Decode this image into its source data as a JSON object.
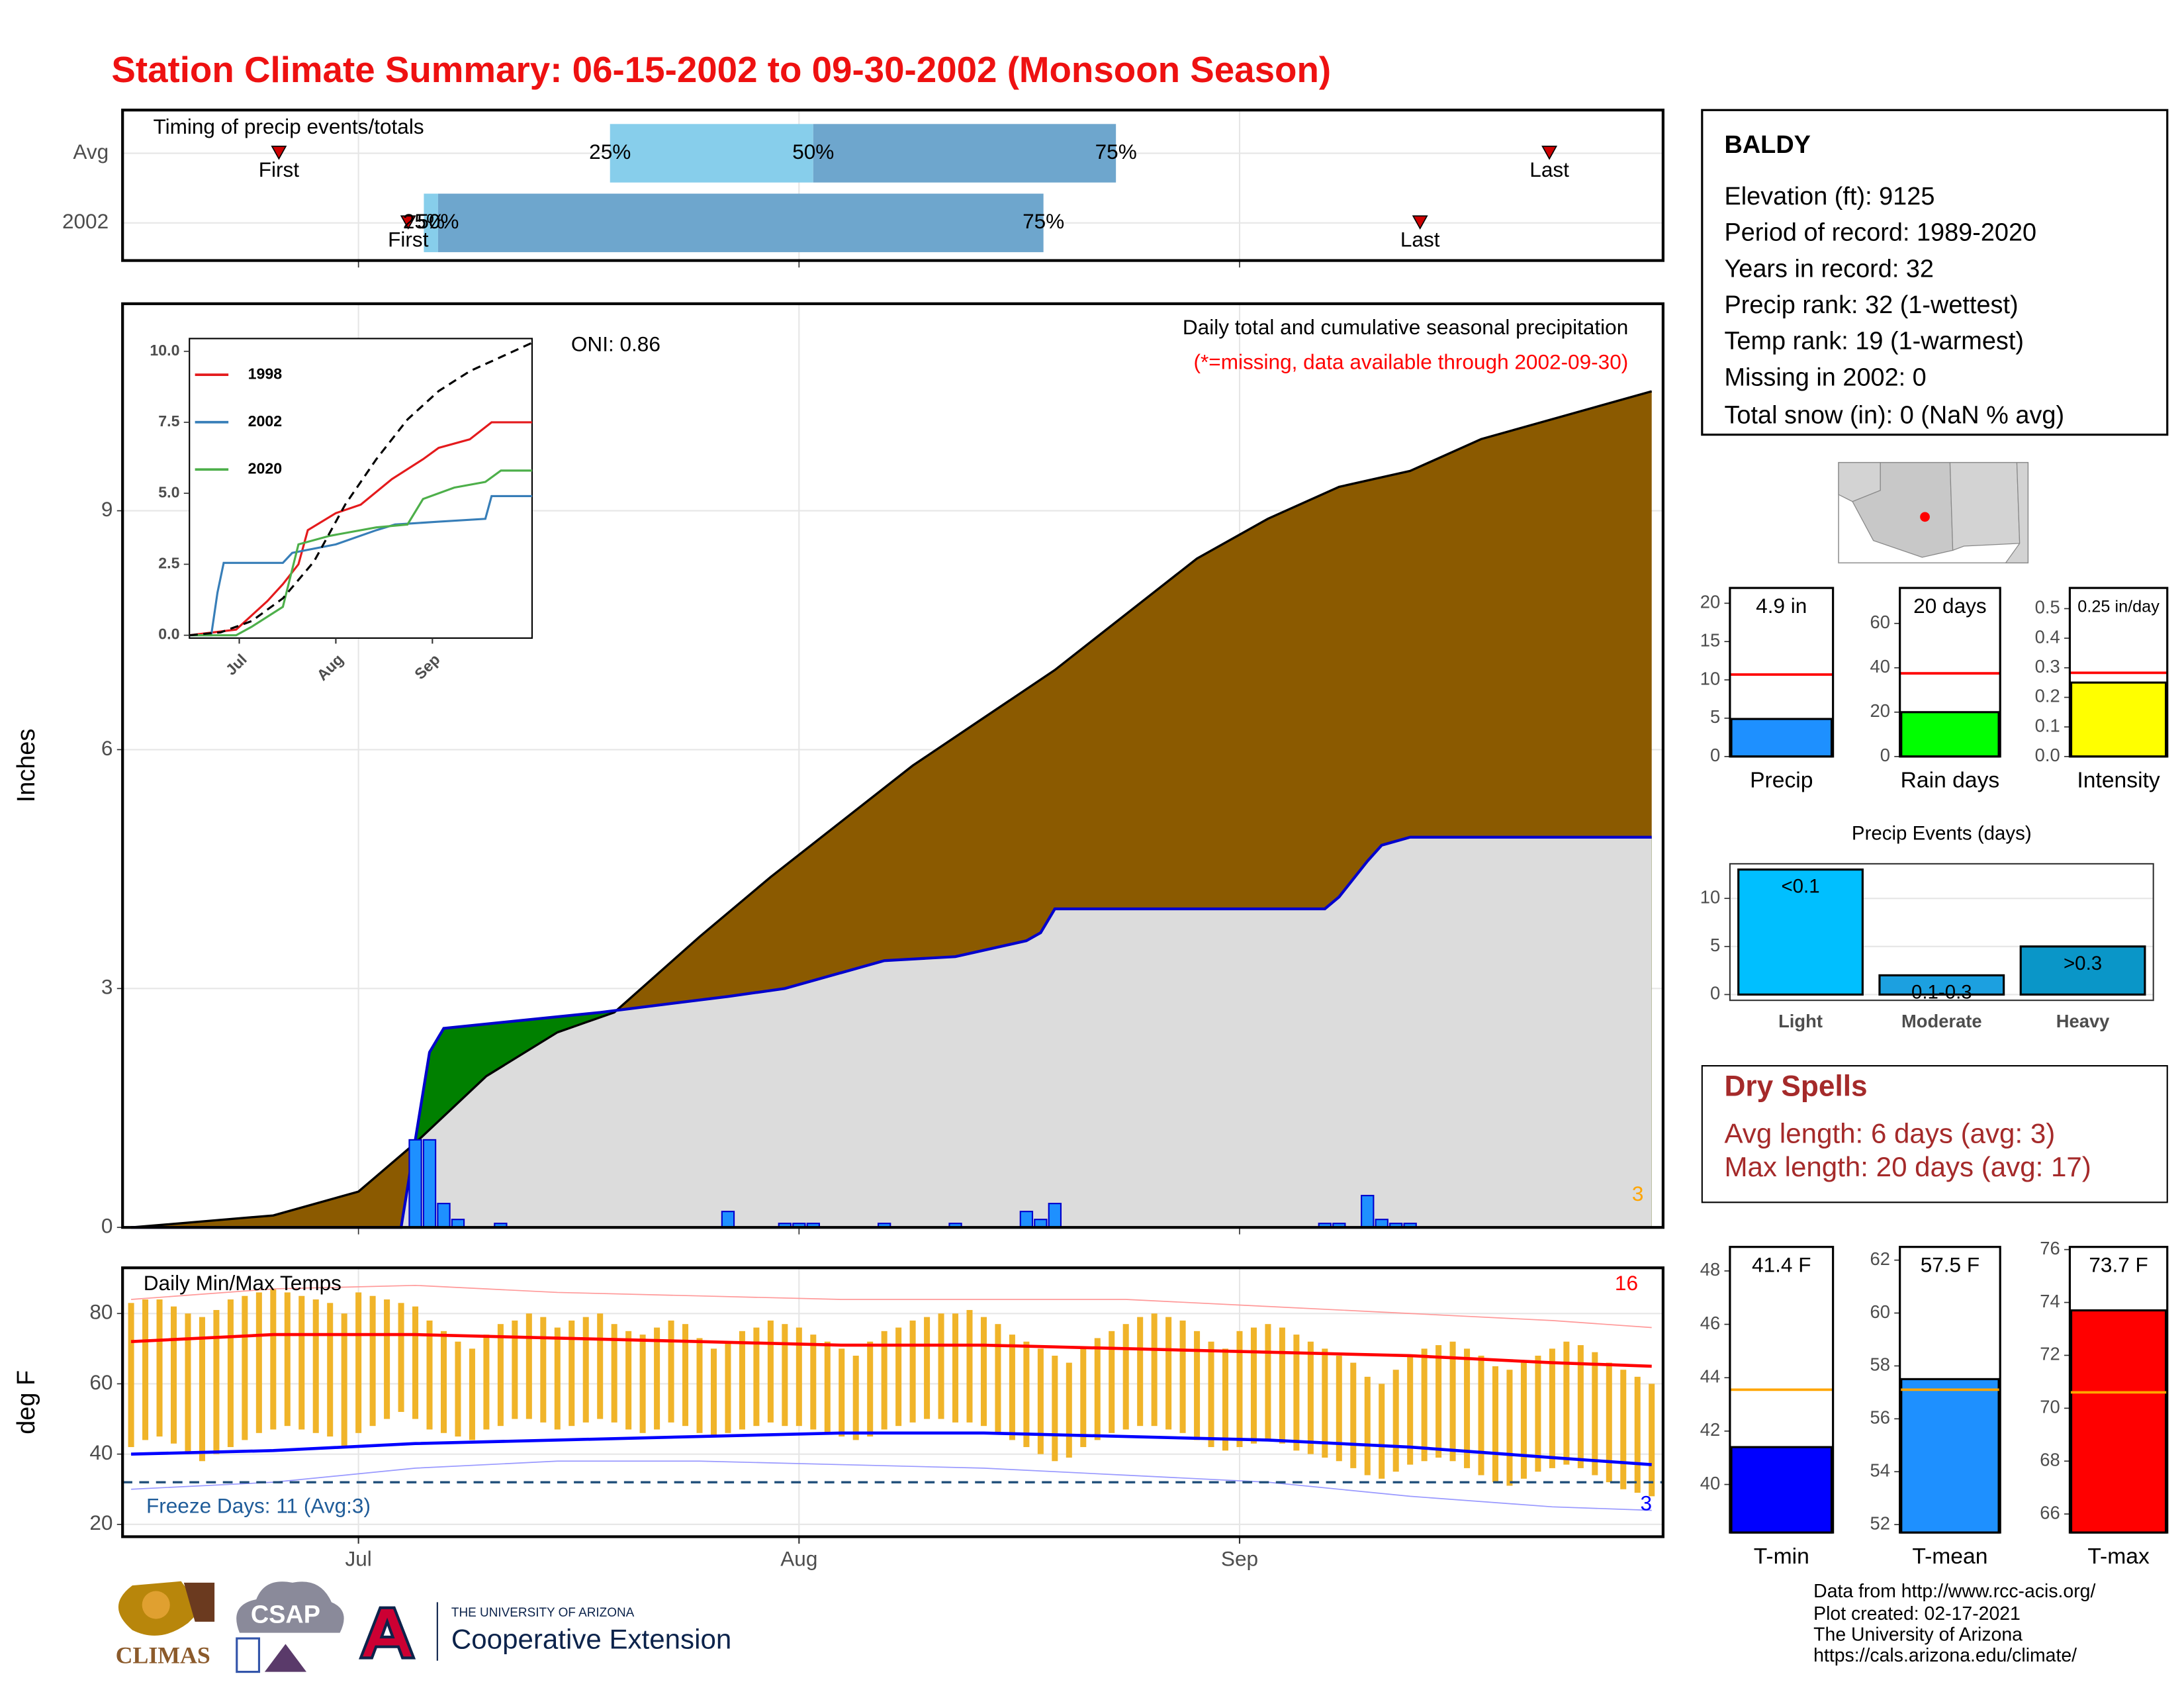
{
  "title": "Station Climate Summary: 06-15-2002 to 09-30-2002 (Monsoon Season)",
  "station": {
    "name": "BALDY",
    "lines": [
      "Elevation (ft): 9125",
      "Period of record: 1989-2020",
      "Years in record: 32",
      "Precip rank: 32 (1-wettest)",
      "Temp rank: 19 (1-warmest)",
      "Missing in 2002: 0",
      "Total snow (in): 0 (NaN % avg)"
    ]
  },
  "dry_spells": {
    "title": "Dry Spells",
    "lines": [
      "Avg length: 6 days (avg: 3)",
      "Max length: 20 days (avg: 17)"
    ]
  },
  "footer": [
    "Data from http://www.rcc-acis.org/",
    "Plot created: 02-17-2021",
    "The University of Arizona",
    "https://cals.arizona.edu/climate/"
  ],
  "logos": [
    "CLIMAS",
    "CSAP",
    "THE UNIVERSITY OF ARIZONA",
    "Cooperative Extension"
  ],
  "chart_data": [
    {
      "type": "timing",
      "title": "Timing of precip events/totals",
      "categories": [
        "Avg",
        "2002"
      ],
      "series": [
        {
          "name": "First",
          "values": [
            10.4,
            19.5
          ]
        },
        {
          "name": "25%",
          "values": [
            33.7,
            20.6
          ]
        },
        {
          "name": "50%",
          "values": [
            48,
            21.6
          ]
        },
        {
          "name": "75%",
          "values": [
            69.3,
            64.2
          ]
        },
        {
          "name": "Last",
          "values": [
            99.8,
            90.7
          ]
        }
      ],
      "colors": [
        "#87ceeb",
        "#6ea6cd"
      ],
      "marker_color": "#cc0000",
      "xlim": [
        -0.6,
        107.8
      ],
      "xticks": [
        16,
        47,
        78
      ]
    },
    {
      "type": "area",
      "title": "Daily total and cumulative seasonal precipitation",
      "subtitle": "(*=missing, data available through 2002-09-30)",
      "subtitle_color": "#ff0000",
      "y_label": "Inches",
      "annotations": [
        {
          "text": "ONI: 0.86"
        },
        {
          "text": "3",
          "color": "#ffa500"
        }
      ],
      "average": {
        "color": "#8b5a00",
        "x": [
          0,
          10,
          16,
          20,
          25,
          30,
          34,
          40,
          45,
          50,
          55,
          60,
          65,
          70,
          75,
          80,
          85,
          90,
          95,
          100,
          105,
          107
        ],
        "values": [
          0,
          0.15,
          0.45,
          1.06,
          1.9,
          2.45,
          2.7,
          3.65,
          4.4,
          5.1,
          5.8,
          6.4,
          7.0,
          7.7,
          8.4,
          8.9,
          9.3,
          9.5,
          9.9,
          10.15,
          10.4,
          10.5
        ]
      },
      "observed": {
        "color": "#0000cd",
        "x": [
          0,
          19,
          20,
          21,
          22,
          33,
          42,
          46,
          53,
          58,
          63,
          64,
          65,
          84,
          85,
          87,
          88,
          90,
          107
        ],
        "values": [
          0,
          0,
          1.1,
          2.2,
          2.5,
          2.7,
          2.9,
          3.0,
          3.35,
          3.4,
          3.6,
          3.7,
          4.0,
          4.0,
          4.15,
          4.6,
          4.8,
          4.9,
          4.9
        ]
      },
      "above_color": "#008000",
      "below_fill": "#dcdcdc",
      "daily": {
        "color": "#1e90ff",
        "x": [
          20,
          21,
          22,
          23,
          26,
          42,
          46,
          47,
          48,
          53,
          58,
          63,
          64,
          65,
          84,
          85,
          87,
          88,
          89,
          90
        ],
        "values": [
          1.1,
          1.1,
          0.3,
          0.1,
          0.05,
          0.2,
          0.05,
          0.05,
          0.05,
          0.05,
          0.05,
          0.2,
          0.1,
          0.3,
          0.05,
          0.05,
          0.4,
          0.1,
          0.05,
          0.05
        ]
      },
      "xlim": [
        -0.6,
        107.8
      ],
      "ylim": [
        0,
        11.6
      ],
      "xticks": [
        16,
        47,
        78
      ],
      "yticks": [
        0,
        3,
        6,
        9
      ],
      "grid": true
    },
    {
      "type": "line",
      "xlim": [
        0,
        110
      ],
      "ylim": [
        -0.1,
        10.45
      ],
      "xticks": [
        {
          "value": 16,
          "label": "Jul"
        },
        {
          "value": 47,
          "label": "Aug"
        },
        {
          "value": 78,
          "label": "Sep"
        }
      ],
      "yticks": [
        {
          "value": 0,
          "label": "0.0"
        },
        {
          "value": 2.5,
          "label": "2.5"
        },
        {
          "value": 5,
          "label": "5.0"
        },
        {
          "value": 7.5,
          "label": "7.5"
        },
        {
          "value": 10,
          "label": "10.0"
        }
      ],
      "series": [
        {
          "name": "1998",
          "color": "#e41a1c",
          "x": [
            0,
            15,
            25,
            30,
            35,
            38,
            47,
            55,
            65,
            75,
            80,
            90,
            97,
            110
          ],
          "values": [
            0,
            0.2,
            1.2,
            1.8,
            2.5,
            3.7,
            4.3,
            4.6,
            5.5,
            6.2,
            6.6,
            6.9,
            7.5,
            7.5
          ]
        },
        {
          "name": "2002",
          "color": "#377eb8",
          "x": [
            0,
            7,
            9,
            11,
            30,
            33,
            47,
            60,
            66,
            80,
            95,
            97,
            110
          ],
          "values": [
            0,
            0,
            1.5,
            2.55,
            2.55,
            2.9,
            3.2,
            3.7,
            3.9,
            4.0,
            4.1,
            4.9,
            4.9
          ]
        },
        {
          "name": "2020",
          "color": "#4daf4a",
          "x": [
            0,
            15,
            20,
            30,
            35,
            45,
            60,
            70,
            75,
            85,
            95,
            100,
            110
          ],
          "values": [
            0,
            0,
            0.3,
            1.0,
            3.2,
            3.5,
            3.8,
            3.9,
            4.8,
            5.2,
            5.4,
            5.8,
            5.8
          ]
        },
        {
          "color": "#000000",
          "dashed": true,
          "x": [
            0,
            10,
            20,
            30,
            40,
            50,
            60,
            70,
            80,
            90,
            100,
            110
          ],
          "values": [
            0,
            0.1,
            0.5,
            1.3,
            2.6,
            4.6,
            6.2,
            7.6,
            8.6,
            9.3,
            9.8,
            10.3
          ]
        }
      ]
    },
    {
      "type": "range",
      "title": "Daily Min/Max Temps",
      "y_label": "deg F",
      "bar_color": "#f0b429",
      "x": [
        0,
        1,
        2,
        3,
        4,
        5,
        6,
        7,
        8,
        9,
        10,
        11,
        12,
        13,
        14,
        15,
        16,
        17,
        18,
        19,
        20,
        21,
        22,
        23,
        24,
        25,
        26,
        27,
        28,
        29,
        30,
        31,
        32,
        33,
        34,
        35,
        36,
        37,
        38,
        39,
        40,
        41,
        42,
        43,
        44,
        45,
        46,
        47,
        48,
        49,
        50,
        51,
        52,
        53,
        54,
        55,
        56,
        57,
        58,
        59,
        60,
        61,
        62,
        63,
        64,
        65,
        66,
        67,
        68,
        69,
        70,
        71,
        72,
        73,
        74,
        75,
        76,
        77,
        78,
        79,
        80,
        81,
        82,
        83,
        84,
        85,
        86,
        87,
        88,
        89,
        90,
        91,
        92,
        93,
        94,
        95,
        96,
        97,
        98,
        99,
        100,
        101,
        102,
        103,
        104,
        105,
        106,
        107
      ],
      "high": [
        83,
        84,
        84,
        82,
        80,
        79,
        81,
        84,
        85,
        86,
        87,
        86,
        85,
        84,
        83,
        80,
        86,
        85,
        84,
        83,
        82,
        78,
        75,
        72,
        70,
        74,
        77,
        78,
        80,
        79,
        76,
        78,
        79,
        80,
        77,
        75,
        74,
        76,
        78,
        77,
        73,
        70,
        72,
        75,
        76,
        78,
        77,
        76,
        74,
        72,
        70,
        68,
        72,
        75,
        76,
        78,
        79,
        80,
        80,
        81,
        79,
        77,
        74,
        72,
        70,
        68,
        66,
        70,
        73,
        75,
        77,
        79,
        80,
        79,
        78,
        75,
        72,
        70,
        75,
        76,
        77,
        76,
        74,
        72,
        70,
        68,
        66,
        62,
        60,
        64,
        68,
        70,
        71,
        72,
        70,
        68,
        65,
        64,
        66,
        68,
        70,
        72,
        71,
        69,
        66,
        64,
        62,
        60
      ],
      "low": [
        42,
        44,
        45,
        43,
        40,
        38,
        40,
        42,
        44,
        46,
        47,
        48,
        47,
        46,
        45,
        42,
        46,
        48,
        50,
        52,
        50,
        47,
        46,
        45,
        44,
        47,
        48,
        50,
        50,
        49,
        47,
        48,
        49,
        50,
        49,
        47,
        46,
        47,
        49,
        48,
        46,
        45,
        46,
        47,
        48,
        49,
        48,
        48,
        47,
        46,
        45,
        44,
        45,
        47,
        48,
        49,
        50,
        50,
        49,
        49,
        48,
        46,
        44,
        42,
        40,
        38,
        39,
        42,
        44,
        46,
        47,
        48,
        48,
        47,
        46,
        44,
        42,
        41,
        42,
        43,
        44,
        43,
        41,
        40,
        39,
        38,
        36,
        34,
        33,
        35,
        37,
        38,
        39,
        38,
        36,
        34,
        32,
        31,
        33,
        35,
        36,
        37,
        36,
        34,
        32,
        30,
        29,
        28
      ],
      "lines": [
        {
          "color": "#ff0000",
          "width": 2.2,
          "x": [
            0,
            10,
            20,
            30,
            40,
            50,
            60,
            70,
            80,
            90,
            100,
            107
          ],
          "values": [
            72,
            74,
            74,
            73,
            72,
            71,
            71,
            70,
            69,
            68,
            66,
            65
          ]
        },
        {
          "color": "#0000ff",
          "width": 2.2,
          "x": [
            0,
            10,
            20,
            30,
            40,
            50,
            60,
            70,
            80,
            90,
            100,
            107
          ],
          "values": [
            40,
            41,
            43,
            44,
            45,
            46,
            46,
            45,
            44,
            42,
            39,
            37
          ]
        },
        {
          "color": "#ff9999",
          "width": 0.8,
          "x": [
            0,
            10,
            20,
            30,
            40,
            50,
            60,
            70,
            80,
            90,
            100,
            107
          ],
          "values": [
            84,
            87,
            88,
            86,
            85,
            84,
            84,
            84,
            82,
            80,
            78,
            76
          ]
        },
        {
          "color": "#9999ff",
          "width": 0.8,
          "x": [
            0,
            10,
            20,
            30,
            40,
            50,
            60,
            70,
            80,
            90,
            100,
            107
          ],
          "values": [
            30,
            32,
            36,
            38,
            38,
            37,
            36,
            34,
            32,
            28,
            25,
            24
          ]
        }
      ],
      "reference": 32,
      "reference_color": "#1f4e79",
      "annotations": [
        {
          "text": "16",
          "color": "#ff0000"
        },
        {
          "text": "3",
          "color": "#0000ff"
        },
        {
          "text": "Freeze Days: 11 (Avg:3)",
          "color": "#1f5c99"
        }
      ],
      "xlim": [
        -0.6,
        107.8
      ],
      "ylim": [
        16.5,
        93
      ],
      "xticks": [
        {
          "value": 16,
          "label": "Jul"
        },
        {
          "value": 47,
          "label": "Aug"
        },
        {
          "value": 78,
          "label": "Sep"
        }
      ],
      "yticks": [
        20,
        40,
        60,
        80
      ],
      "grid": true
    },
    {
      "type": "bar",
      "categories": [
        "Precip"
      ],
      "values": [
        4.9
      ],
      "value_labels": [
        "4.9 in"
      ],
      "color": "#1e90ff",
      "reference": 10.7,
      "reference_color": "#ff0000",
      "ylim": [
        0,
        22
      ],
      "yticks": [
        0,
        5,
        10,
        15,
        20
      ]
    },
    {
      "type": "bar",
      "categories": [
        "Rain days"
      ],
      "values": [
        20
      ],
      "value_labels": [
        "20 days"
      ],
      "color": "#00ff00",
      "reference": 37.5,
      "reference_color": "#ff0000",
      "ylim": [
        0,
        76
      ],
      "yticks": [
        0,
        20,
        40,
        60
      ]
    },
    {
      "type": "bar",
      "categories": [
        "Intensity"
      ],
      "values": [
        0.25
      ],
      "value_labels": [
        "0.25 in/day"
      ],
      "color": "#ffff00",
      "reference": 0.283,
      "reference_color": "#ff0000",
      "ylim": [
        0,
        0.57
      ],
      "yticks": [
        {
          "value": 0,
          "label": "0.0"
        },
        0.1,
        0.2,
        0.3,
        0.4,
        0.5
      ]
    },
    {
      "type": "bar",
      "title": "Precip Events (days)",
      "categories": [
        "Light",
        "Moderate",
        "Heavy"
      ],
      "values": [
        13,
        2,
        5
      ],
      "bar_labels": [
        "<0.1",
        "0.1-0.3",
        ">0.3"
      ],
      "colors": [
        "#00bfff",
        "#1ca0e0",
        "#0a96c8"
      ],
      "ylim": [
        -0.6,
        13.6
      ],
      "yticks": [
        0,
        5,
        10
      ],
      "grid": true
    },
    {
      "type": "bar",
      "categories": [
        "T-min"
      ],
      "values": [
        41.4
      ],
      "value_labels": [
        "41.4 F"
      ],
      "color": "#0000ff",
      "reference": 43.55,
      "reference_color": "#ffa500",
      "ylim": [
        38.2,
        48.9
      ],
      "yticks": [
        40,
        42,
        44,
        46,
        48
      ],
      "baseline": 38.2
    },
    {
      "type": "bar",
      "categories": [
        "T-mean"
      ],
      "values": [
        57.5
      ],
      "value_labels": [
        "57.5 F"
      ],
      "color": "#1e90ff",
      "reference": 57.1,
      "reference_color": "#ffa500",
      "ylim": [
        51.7,
        62.5
      ],
      "yticks": [
        52,
        54,
        56,
        58,
        60,
        62
      ],
      "baseline": 51.7
    },
    {
      "type": "bar",
      "categories": [
        "T-max"
      ],
      "values": [
        73.7
      ],
      "value_labels": [
        "73.7 F"
      ],
      "color": "#ff0000",
      "reference": 70.6,
      "reference_color": "#ffa500",
      "ylim": [
        65.3,
        76.1
      ],
      "yticks": [
        66,
        68,
        70,
        72,
        74,
        76
      ],
      "baseline": 65.3
    }
  ]
}
